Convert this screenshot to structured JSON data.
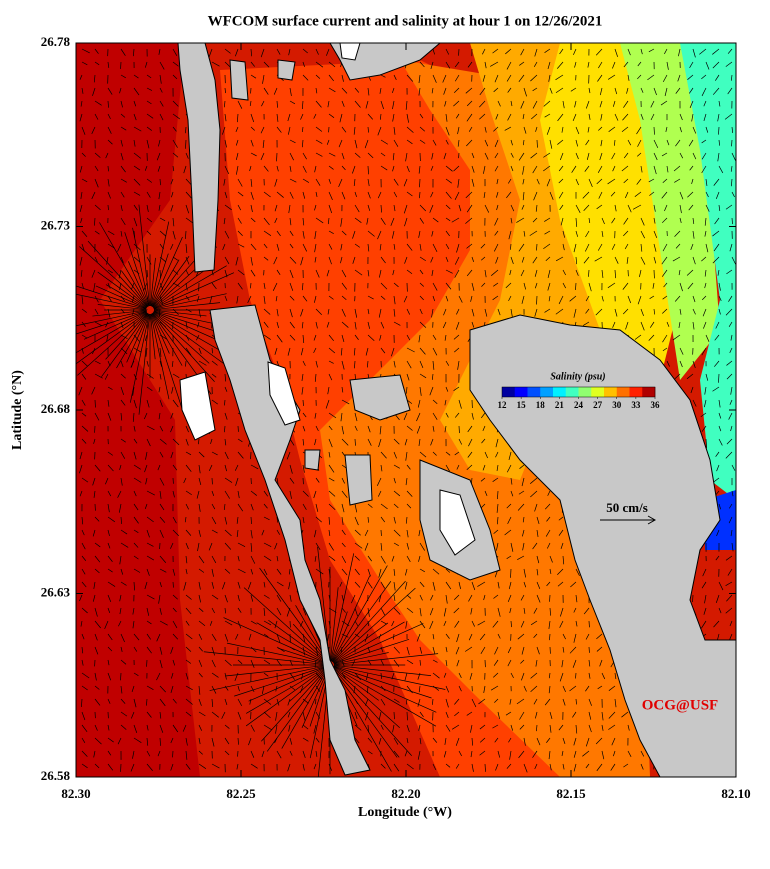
{
  "chart_data": {
    "type": "map",
    "title": "WFCOM surface current and salinity at hour 1 on 12/26/2021",
    "x_label": "Longitude (°W)",
    "y_label": "Latitude (°N)",
    "xlim": [
      82.3,
      82.1
    ],
    "xticks": [
      {
        "value": 82.3,
        "label": "82.30"
      },
      82.25,
      {
        "value": 82.2,
        "label": "82.20"
      },
      82.15,
      {
        "value": 82.1,
        "label": "82.10"
      }
    ],
    "ylim": [
      26.58,
      26.78
    ],
    "yticks": [
      26.58,
      26.63,
      26.68,
      26.73,
      26.78
    ],
    "colorbar": {
      "title": "Salinity (psu)",
      "lim": [
        12,
        36
      ],
      "ticks": [
        12,
        15,
        18,
        21,
        24,
        27,
        30,
        33,
        36
      ],
      "colors": [
        "#0000a0",
        "#0000ff",
        "#0050ff",
        "#00a0ff",
        "#00f0ff",
        "#40ffc0",
        "#90ff70",
        "#e0ff20",
        "#ffc000",
        "#ff7000",
        "#ff2000",
        "#b00000"
      ]
    },
    "scale_label": "50 cm/s",
    "credit": "OCG@USF"
  }
}
